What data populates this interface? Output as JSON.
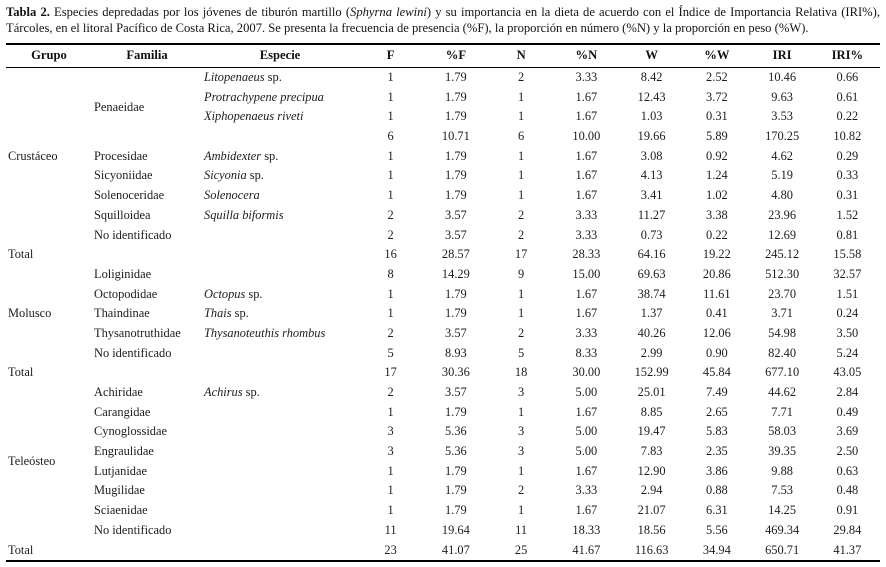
{
  "caption": {
    "label": "Tabla 2.",
    "before_italic": " Especies depredadas por los jóvenes de tiburón martillo (",
    "species_italic": "Sphyrna lewini",
    "after_italic": ") y su importancia en la dieta de acuerdo con el Índice de Importancia Relativa (IRI%), Tárcoles, en el litoral Pacífico de Costa Rica, 2007. Se presenta la frecuencia de presencia (%F), la proporción en número (%N) y la proporción en peso (%W)."
  },
  "table": {
    "headers": [
      "Grupo",
      "Familia",
      "Especie",
      "F",
      "%F",
      "N",
      "%N",
      "W",
      "%W",
      "IRI",
      "IRI%"
    ],
    "rows": [
      {
        "grupo": "Crustáceo",
        "grupo_span": 9,
        "familia": "Penaeidae",
        "familia_span": 4,
        "sp_i": "Litopenaeus",
        "sp_r": " sp.",
        "v": [
          "1",
          "1.79",
          "2",
          "3.33",
          "8.42",
          "2.52",
          "10.46",
          "0.66"
        ]
      },
      {
        "sp_i": "Protrachypene precipua",
        "sp_r": "",
        "v": [
          "1",
          "1.79",
          "1",
          "1.67",
          "12.43",
          "3.72",
          "9.63",
          "0.61"
        ]
      },
      {
        "sp_i": "Xiphopenaeus riveti",
        "sp_r": "",
        "v": [
          "1",
          "1.79",
          "1",
          "1.67",
          "1.03",
          "0.31",
          "3.53",
          "0.22"
        ]
      },
      {
        "sp_i": "",
        "sp_r": "",
        "v": [
          "6",
          "10.71",
          "6",
          "10.00",
          "19.66",
          "5.89",
          "170.25",
          "10.82"
        ]
      },
      {
        "familia": "Procesidae",
        "sp_i": "Ambidexter",
        "sp_r": " sp.",
        "v": [
          "1",
          "1.79",
          "1",
          "1.67",
          "3.08",
          "0.92",
          "4.62",
          "0.29"
        ]
      },
      {
        "familia": "Sicyoniidae",
        "sp_i": "Sicyonia",
        "sp_r": " sp.",
        "v": [
          "1",
          "1.79",
          "1",
          "1.67",
          "4.13",
          "1.24",
          "5.19",
          "0.33"
        ]
      },
      {
        "familia": "Solenoceridae",
        "sp_i": "Solenocera",
        "sp_r": "",
        "v": [
          "1",
          "1.79",
          "1",
          "1.67",
          "3.41",
          "1.02",
          "4.80",
          "0.31"
        ]
      },
      {
        "familia": "Squilloidea",
        "sp_i": "Squilla biformis",
        "sp_r": "",
        "v": [
          "2",
          "3.57",
          "2",
          "3.33",
          "11.27",
          "3.38",
          "23.96",
          "1.52"
        ]
      },
      {
        "familia": "No identificado",
        "sp_i": "",
        "sp_r": "",
        "v": [
          "2",
          "3.57",
          "2",
          "3.33",
          "0.73",
          "0.22",
          "12.69",
          "0.81"
        ]
      },
      {
        "grupo": "Total",
        "familia": "",
        "sp_i": "",
        "sp_r": "",
        "v": [
          "16",
          "28.57",
          "17",
          "28.33",
          "64.16",
          "19.22",
          "245.12",
          "15.58"
        ]
      },
      {
        "grupo": "Molusco",
        "grupo_span": 5,
        "familia": "Loliginidae",
        "sp_i": "",
        "sp_r": "",
        "v": [
          "8",
          "14.29",
          "9",
          "15.00",
          "69.63",
          "20.86",
          "512.30",
          "32.57"
        ]
      },
      {
        "familia": "Octopodidae",
        "sp_i": "Octopus",
        "sp_r": " sp.",
        "v": [
          "1",
          "1.79",
          "1",
          "1.67",
          "38.74",
          "11.61",
          "23.70",
          "1.51"
        ]
      },
      {
        "familia": "Thaindinae",
        "sp_i": "Thais",
        "sp_r": " sp.",
        "v": [
          "1",
          "1.79",
          "1",
          "1.67",
          "1.37",
          "0.41",
          "3.71",
          "0.24"
        ]
      },
      {
        "familia": "Thysanotruthidae",
        "sp_i": "Thysanoteuthis rhombus",
        "sp_r": "",
        "v": [
          "2",
          "3.57",
          "2",
          "3.33",
          "40.26",
          "12.06",
          "54.98",
          "3.50"
        ]
      },
      {
        "familia": "No identificado",
        "sp_i": "",
        "sp_r": "",
        "v": [
          "5",
          "8.93",
          "5",
          "8.33",
          "2.99",
          "0.90",
          "82.40",
          "5.24"
        ]
      },
      {
        "grupo": "Total",
        "familia": "",
        "sp_i": "",
        "sp_r": "",
        "v": [
          "17",
          "30.36",
          "18",
          "30.00",
          "152.99",
          "45.84",
          "677.10",
          "43.05"
        ]
      },
      {
        "grupo": "Teleósteo",
        "grupo_span": 8,
        "familia": "Achiridae",
        "sp_i": "Achirus",
        "sp_r": " sp.",
        "v": [
          "2",
          "3.57",
          "3",
          "5.00",
          "25.01",
          "7.49",
          "44.62",
          "2.84"
        ]
      },
      {
        "familia": "Carangidae",
        "sp_i": "",
        "sp_r": "",
        "v": [
          "1",
          "1.79",
          "1",
          "1.67",
          "8.85",
          "2.65",
          "7.71",
          "0.49"
        ]
      },
      {
        "familia": "Cynoglossidae",
        "sp_i": "",
        "sp_r": "",
        "v": [
          "3",
          "5.36",
          "3",
          "5.00",
          "19.47",
          "5.83",
          "58.03",
          "3.69"
        ]
      },
      {
        "familia": "Engraulidae",
        "sp_i": "",
        "sp_r": "",
        "v": [
          "3",
          "5.36",
          "3",
          "5.00",
          "7.83",
          "2.35",
          "39.35",
          "2.50"
        ]
      },
      {
        "familia": "Lutjanidae",
        "sp_i": "",
        "sp_r": "",
        "v": [
          "1",
          "1.79",
          "1",
          "1.67",
          "12.90",
          "3.86",
          "9.88",
          "0.63"
        ]
      },
      {
        "familia": "Mugilidae",
        "sp_i": "",
        "sp_r": "",
        "v": [
          "1",
          "1.79",
          "2",
          "3.33",
          "2.94",
          "0.88",
          "7.53",
          "0.48"
        ]
      },
      {
        "familia": "Sciaenidae",
        "sp_i": "",
        "sp_r": "",
        "v": [
          "1",
          "1.79",
          "1",
          "1.67",
          "21.07",
          "6.31",
          "14.25",
          "0.91"
        ]
      },
      {
        "familia": "No identificado",
        "sp_i": "",
        "sp_r": "",
        "v": [
          "11",
          "19.64",
          "11",
          "18.33",
          "18.56",
          "5.56",
          "469.34",
          "29.84"
        ]
      },
      {
        "grupo": "Total",
        "familia": "",
        "sp_i": "",
        "sp_r": "",
        "v": [
          "23",
          "41.07",
          "25",
          "41.67",
          "116.63",
          "34.94",
          "650.71",
          "41.37"
        ]
      }
    ]
  },
  "colors": {
    "background": "#ffffff",
    "text": "#1c1c1c",
    "rule": "#000000"
  }
}
